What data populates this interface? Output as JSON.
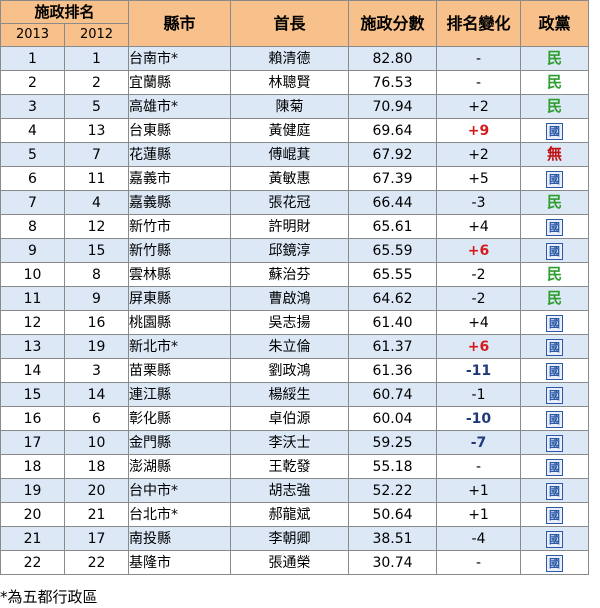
{
  "header": {
    "rank": "施政排名",
    "year_2013": "2013",
    "year_2012": "2012",
    "county": "縣市",
    "mayor": "首長",
    "score": "施政分數",
    "change": "排名變化",
    "party": "政黨"
  },
  "rows": [
    {
      "r2013": "1",
      "r2012": "1",
      "county": "台南市*",
      "mayor": "賴清德",
      "score": "82.80",
      "change": "-",
      "party": "民"
    },
    {
      "r2013": "2",
      "r2012": "2",
      "county": "宜蘭縣",
      "mayor": "林聰賢",
      "score": "76.53",
      "change": "-",
      "party": "民"
    },
    {
      "r2013": "3",
      "r2012": "5",
      "county": "高雄市*",
      "mayor": "陳菊",
      "score": "70.94",
      "change": "+2",
      "party": "民"
    },
    {
      "r2013": "4",
      "r2012": "13",
      "county": "台東縣",
      "mayor": "黃健庭",
      "score": "69.64",
      "change": "+9",
      "party": "國"
    },
    {
      "r2013": "5",
      "r2012": "7",
      "county": "花蓮縣",
      "mayor": "傅崐萁",
      "score": "67.92",
      "change": "+2",
      "party": "無"
    },
    {
      "r2013": "6",
      "r2012": "11",
      "county": "嘉義市",
      "mayor": "黃敏惠",
      "score": "67.39",
      "change": "+5",
      "party": "國"
    },
    {
      "r2013": "7",
      "r2012": "4",
      "county": "嘉義縣",
      "mayor": "張花冠",
      "score": "66.44",
      "change": "-3",
      "party": "民"
    },
    {
      "r2013": "8",
      "r2012": "12",
      "county": "新竹市",
      "mayor": "許明財",
      "score": "65.61",
      "change": "+4",
      "party": "國"
    },
    {
      "r2013": "9",
      "r2012": "15",
      "county": "新竹縣",
      "mayor": "邱鏡淳",
      "score": "65.59",
      "change": "+6",
      "party": "國"
    },
    {
      "r2013": "10",
      "r2012": "8",
      "county": "雲林縣",
      "mayor": "蘇治芬",
      "score": "65.55",
      "change": "-2",
      "party": "民"
    },
    {
      "r2013": "11",
      "r2012": "9",
      "county": "屏東縣",
      "mayor": "曹啟鴻",
      "score": "64.62",
      "change": "-2",
      "party": "民"
    },
    {
      "r2013": "12",
      "r2012": "16",
      "county": "桃園縣",
      "mayor": "吳志揚",
      "score": "61.40",
      "change": "+4",
      "party": "國"
    },
    {
      "r2013": "13",
      "r2012": "19",
      "county": "新北市*",
      "mayor": "朱立倫",
      "score": "61.37",
      "change": "+6",
      "party": "國"
    },
    {
      "r2013": "14",
      "r2012": "3",
      "county": "苗栗縣",
      "mayor": "劉政鴻",
      "score": "61.36",
      "change": "-11",
      "party": "國"
    },
    {
      "r2013": "15",
      "r2012": "14",
      "county": "連江縣",
      "mayor": "楊綏生",
      "score": "60.74",
      "change": "-1",
      "party": "國"
    },
    {
      "r2013": "16",
      "r2012": "6",
      "county": "彰化縣",
      "mayor": "卓伯源",
      "score": "60.04",
      "change": "-10",
      "party": "國"
    },
    {
      "r2013": "17",
      "r2012": "10",
      "county": "金門縣",
      "mayor": "李沃士",
      "score": "59.25",
      "change": "-7",
      "party": "國"
    },
    {
      "r2013": "18",
      "r2012": "18",
      "county": "澎湖縣",
      "mayor": "王乾發",
      "score": "55.18",
      "change": "-",
      "party": "國"
    },
    {
      "r2013": "19",
      "r2012": "20",
      "county": "台中市*",
      "mayor": "胡志強",
      "score": "52.22",
      "change": "+1",
      "party": "國"
    },
    {
      "r2013": "20",
      "r2012": "21",
      "county": "台北市*",
      "mayor": "郝龍斌",
      "score": "50.64",
      "change": "+1",
      "party": "國"
    },
    {
      "r2013": "21",
      "r2012": "17",
      "county": "南投縣",
      "mayor": "李朝卿",
      "score": "38.51",
      "change": "-4",
      "party": "國"
    },
    {
      "r2013": "22",
      "r2012": "22",
      "county": "基隆市",
      "mayor": "張通榮",
      "score": "30.74",
      "change": "-",
      "party": "國"
    }
  ],
  "footnote": "*為五都行政區",
  "colors": {
    "header_bg": "#f8c08a",
    "stripe_bg": "#dce8f6",
    "big_gain": "#d41b1b",
    "big_drop": "#1f3a7a",
    "party_dpp": "#2e9e2e",
    "party_kmt": "#2a5aa8",
    "party_ind": "#c01010"
  }
}
